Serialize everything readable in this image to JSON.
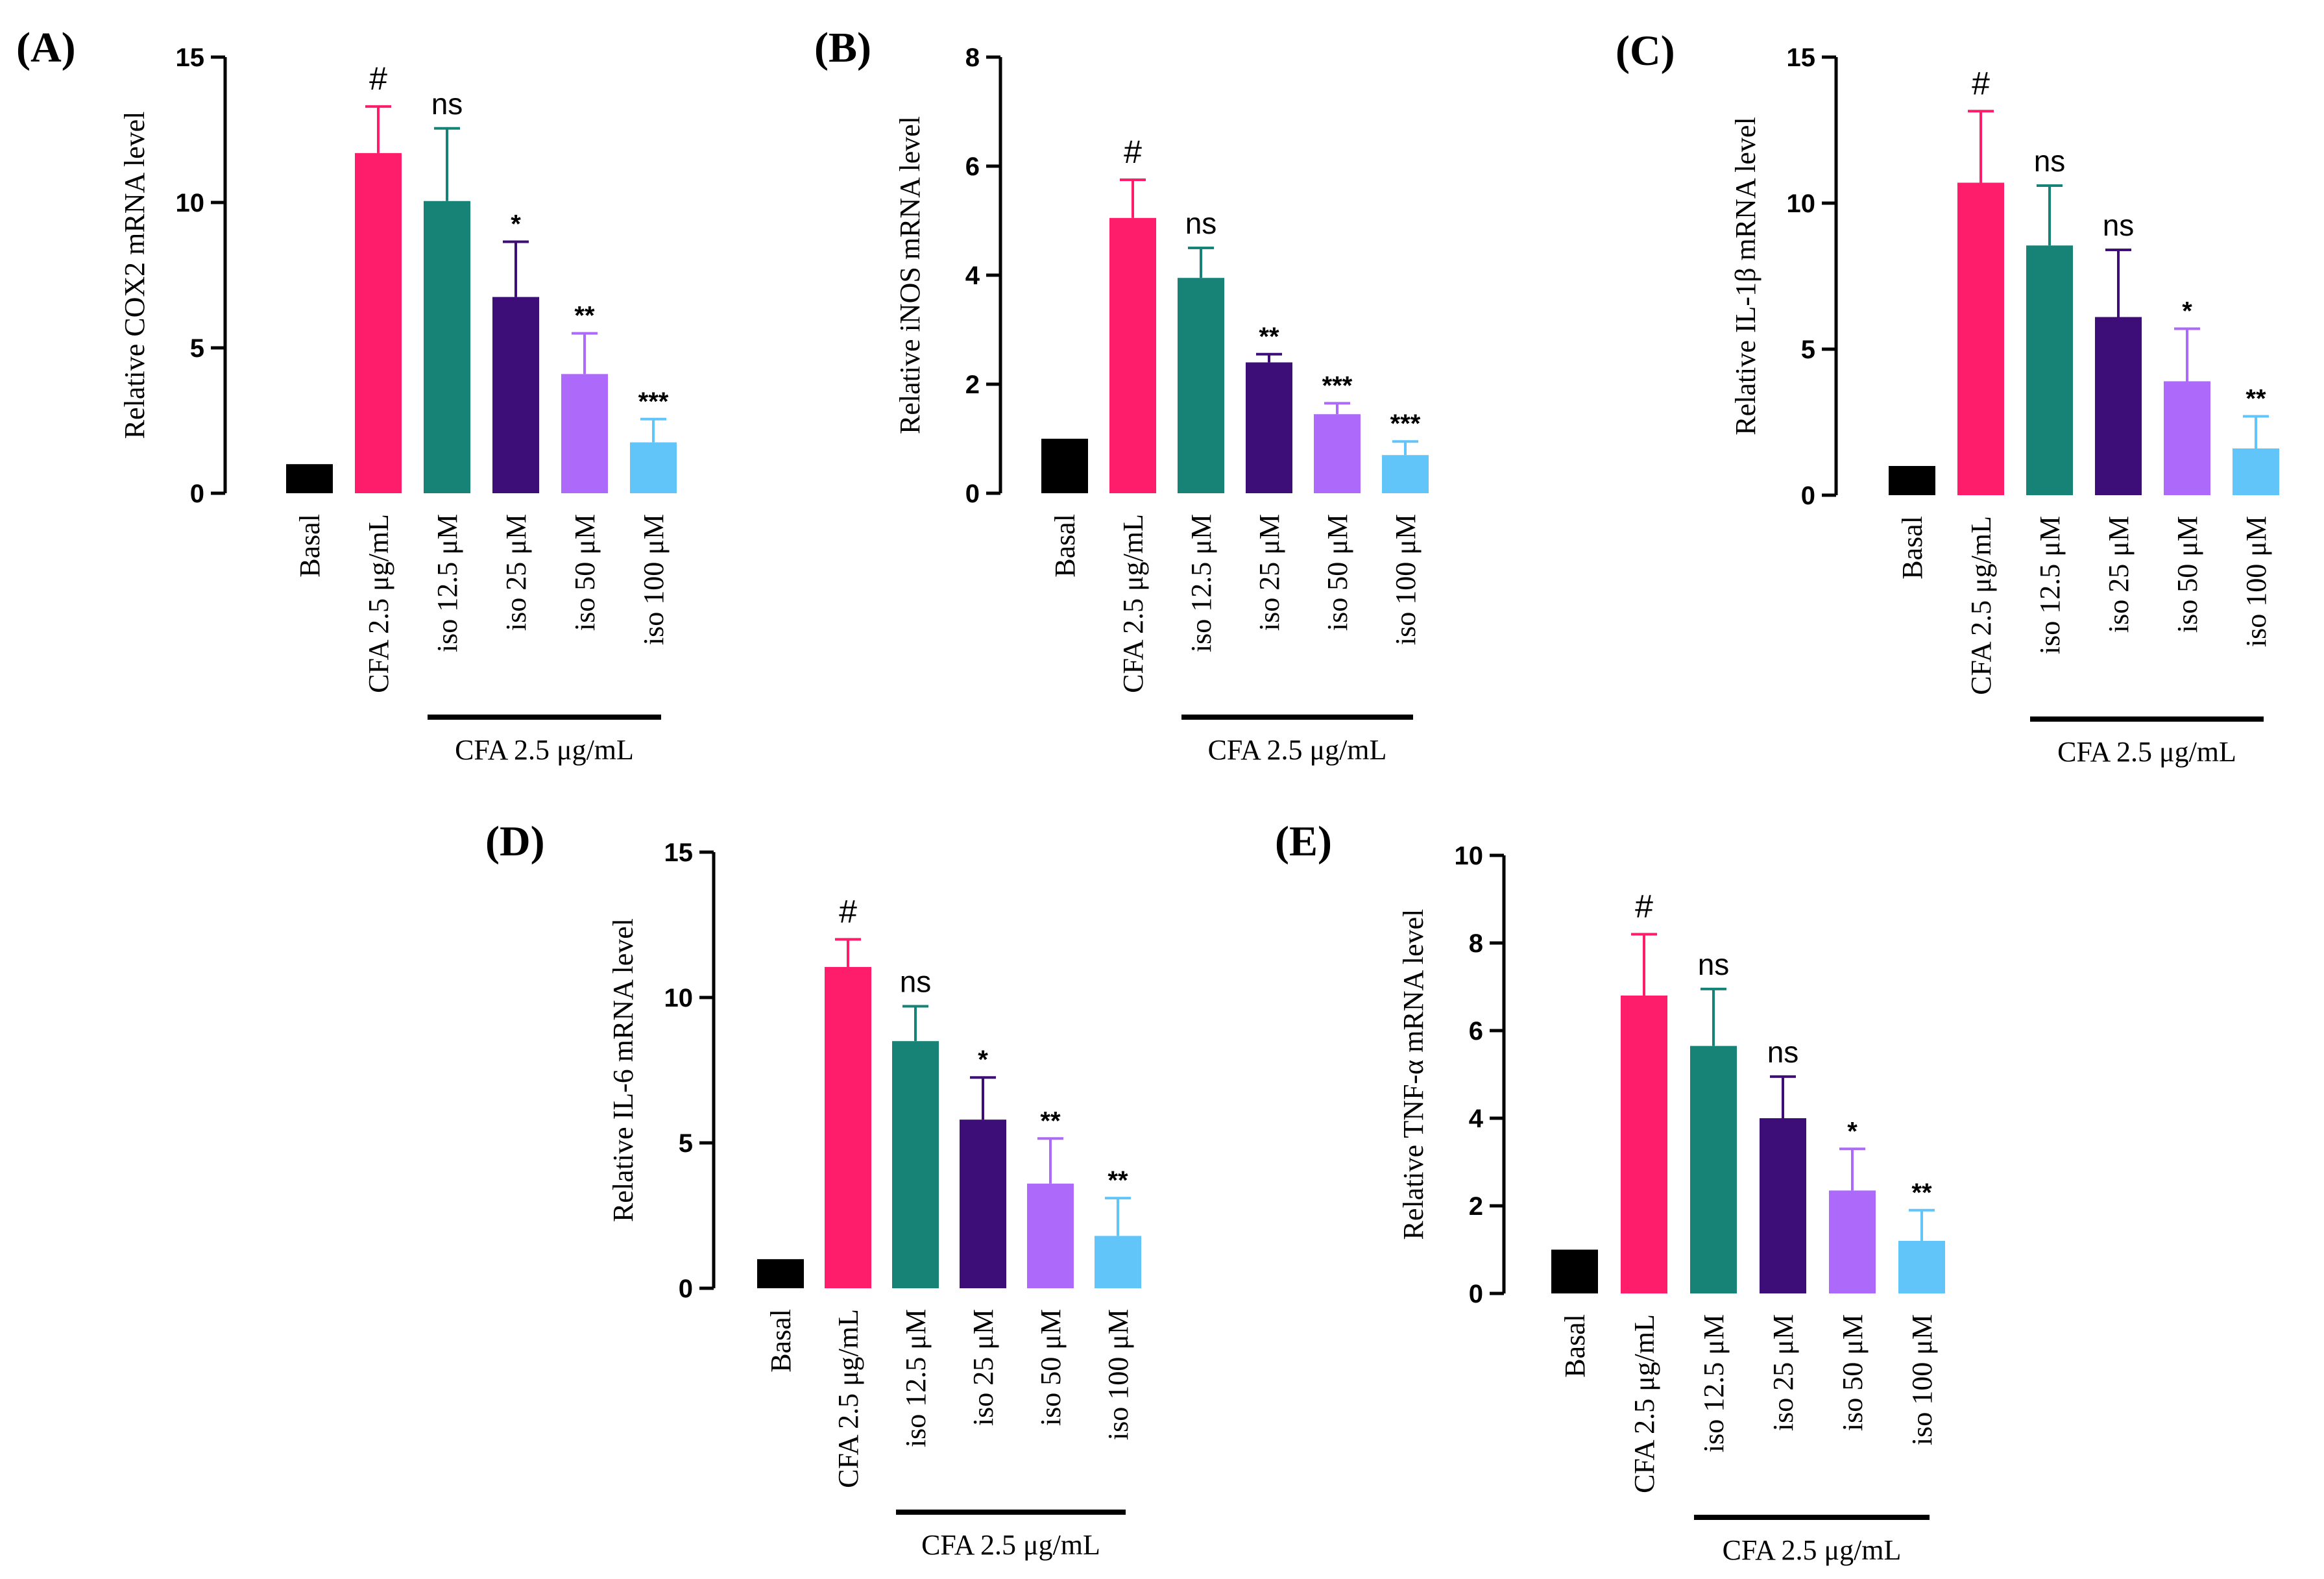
{
  "chart_data": [
    {
      "type": "bar",
      "panel": "(A)",
      "ylabel": "Relative COX2 mRNA level",
      "ylim": [
        0,
        15
      ],
      "yticks": [
        0,
        5,
        10,
        15
      ],
      "categories": [
        "Basal",
        "CFA 2.5 μg/mL",
        "iso 12.5 μM",
        "iso 25 μM",
        "iso 50 μM",
        "iso 100 μM"
      ],
      "values": [
        1.0,
        11.7,
        10.05,
        6.75,
        4.1,
        1.75
      ],
      "errors": [
        0,
        1.6,
        2.5,
        1.9,
        1.4,
        0.8
      ],
      "significance": [
        "",
        "#",
        "ns",
        "*",
        "**",
        "***"
      ],
      "group_label": "CFA 2.5 μg/mL"
    },
    {
      "type": "bar",
      "panel": "(B)",
      "ylabel": "Relative iNOS mRNA level",
      "ylim": [
        0,
        8
      ],
      "yticks": [
        0,
        2,
        4,
        6,
        8
      ],
      "categories": [
        "Basal",
        "CFA 2.5 μg/mL",
        "iso 12.5 μM",
        "iso 25 μM",
        "iso 50 μM",
        "iso 100 μM"
      ],
      "values": [
        1.0,
        5.05,
        3.95,
        2.4,
        1.45,
        0.7
      ],
      "errors": [
        0,
        0.7,
        0.55,
        0.15,
        0.2,
        0.25
      ],
      "significance": [
        "",
        "#",
        "ns",
        "**",
        "***",
        "***"
      ],
      "group_label": "CFA 2.5 μg/mL"
    },
    {
      "type": "bar",
      "panel": "(C)",
      "ylabel": "Relative IL-1β mRNA level",
      "ylim": [
        0,
        15
      ],
      "yticks": [
        0,
        5,
        10,
        15
      ],
      "categories": [
        "Basal",
        "CFA 2.5 μg/mL",
        "iso 12.5 μM",
        "iso 25 μM",
        "iso 50 μM",
        "iso 100 μM"
      ],
      "values": [
        1.0,
        10.7,
        8.55,
        6.1,
        3.9,
        1.6
      ],
      "errors": [
        0,
        2.45,
        2.05,
        2.3,
        1.8,
        1.1
      ],
      "significance": [
        "",
        "#",
        "ns",
        "ns",
        "*",
        "**"
      ],
      "group_label": "CFA 2.5 μg/mL"
    },
    {
      "type": "bar",
      "panel": "(D)",
      "ylabel": "Relative IL-6 mRNA level",
      "ylim": [
        0,
        15
      ],
      "yticks": [
        0,
        5,
        10,
        15
      ],
      "categories": [
        "Basal",
        "CFA 2.5 μg/mL",
        "iso 12.5 μM",
        "iso 25 μM",
        "iso 50 μM",
        "iso 100 μM"
      ],
      "values": [
        1.0,
        11.05,
        8.5,
        5.8,
        3.6,
        1.8
      ],
      "errors": [
        0,
        0.95,
        1.2,
        1.45,
        1.55,
        1.3
      ],
      "significance": [
        "",
        "#",
        "ns",
        "*",
        "**",
        "**"
      ],
      "group_label": "CFA 2.5 μg/mL"
    },
    {
      "type": "bar",
      "panel": "(E)",
      "ylabel": "Relative TNF-α mRNA level",
      "ylim": [
        0,
        10
      ],
      "yticks": [
        0,
        2,
        4,
        6,
        8,
        10
      ],
      "categories": [
        "Basal",
        "CFA 2.5 μg/mL",
        "iso 12.5 μM",
        "iso 25 μM",
        "iso 50 μM",
        "iso 100 μM"
      ],
      "values": [
        1.0,
        6.8,
        5.65,
        4.0,
        2.35,
        1.2
      ],
      "errors": [
        0,
        1.4,
        1.3,
        0.95,
        0.95,
        0.7
      ],
      "significance": [
        "",
        "#",
        "ns",
        "ns",
        "*",
        "**"
      ],
      "group_label": "CFA 2.5 μg/mL"
    }
  ],
  "colors": {
    "bars": [
      "#000000",
      "#fe1d6a",
      "#178377",
      "#3d0e77",
      "#ad6afa",
      "#62c5fa"
    ],
    "axis": "#000000"
  }
}
